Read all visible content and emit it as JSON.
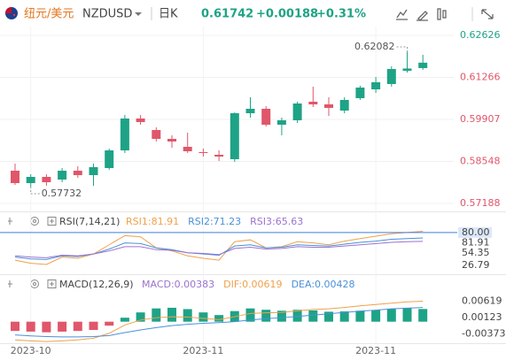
{
  "header": {
    "name": "纽元/美元",
    "symbol": "NZDUSD",
    "period": "日K",
    "price": "0.61742",
    "change": "+0.00188",
    "change_pct": "+0.31%"
  },
  "chart_data": [
    {
      "type": "candlestick",
      "up_color": "#1ea386",
      "down_color": "#e0566a",
      "grid": true,
      "categories": [
        null,
        "2023-10",
        null,
        null,
        null,
        null,
        null,
        null,
        null,
        null,
        null,
        null,
        "2023-11",
        null,
        null,
        null,
        null,
        null,
        null,
        null,
        null,
        null,
        null,
        "2023-11",
        null,
        null,
        null
      ],
      "candles": [
        {
          "open": 0.58247,
          "high": 0.58476,
          "low": 0.57789,
          "close": 0.57846
        },
        {
          "open": 0.57846,
          "high": 0.58133,
          "low": 0.57732,
          "close": 0.58047
        },
        {
          "open": 0.58047,
          "high": 0.58133,
          "low": 0.57761,
          "close": 0.57875
        },
        {
          "open": 0.57961,
          "high": 0.58333,
          "low": 0.57875,
          "close": 0.58247
        },
        {
          "open": 0.58247,
          "high": 0.5839,
          "low": 0.58018,
          "close": 0.58104
        },
        {
          "open": 0.58104,
          "high": 0.58476,
          "low": 0.57761,
          "close": 0.58362
        },
        {
          "open": 0.58333,
          "high": 0.58963,
          "low": 0.58276,
          "close": 0.58905
        },
        {
          "open": 0.58905,
          "high": 0.6005,
          "low": 0.5882,
          "close": 0.59936
        },
        {
          "open": 0.59936,
          "high": 0.6005,
          "low": 0.59735,
          "close": 0.59821
        },
        {
          "open": 0.59564,
          "high": 0.5965,
          "low": 0.59192,
          "close": 0.59277
        },
        {
          "open": 0.59277,
          "high": 0.59392,
          "low": 0.58991,
          "close": 0.59192
        },
        {
          "open": 0.5902,
          "high": 0.59478,
          "low": 0.5882,
          "close": 0.58877
        },
        {
          "open": 0.58848,
          "high": 0.58963,
          "low": 0.58705,
          "close": 0.5882
        },
        {
          "open": 0.58762,
          "high": 0.58905,
          "low": 0.58562,
          "close": 0.58705
        },
        {
          "open": 0.58619,
          "high": 0.60136,
          "low": 0.58533,
          "close": 0.60107
        },
        {
          "open": 0.60107,
          "high": 0.60623,
          "low": 0.59964,
          "close": 0.60251
        },
        {
          "open": 0.60251,
          "high": 0.60336,
          "low": 0.59678,
          "close": 0.59735
        },
        {
          "open": 0.59735,
          "high": 0.59964,
          "low": 0.59392,
          "close": 0.59879
        },
        {
          "open": 0.59879,
          "high": 0.6048,
          "low": 0.59793,
          "close": 0.60422
        },
        {
          "open": 0.6048,
          "high": 0.60966,
          "low": 0.60308,
          "close": 0.60394
        },
        {
          "open": 0.60394,
          "high": 0.60623,
          "low": 0.60022,
          "close": 0.60279
        },
        {
          "open": 0.60193,
          "high": 0.60623,
          "low": 0.60107,
          "close": 0.60537
        },
        {
          "open": 0.60594,
          "high": 0.60995,
          "low": 0.60537,
          "close": 0.60937
        },
        {
          "open": 0.6088,
          "high": 0.61281,
          "low": 0.60766,
          "close": 0.61109
        },
        {
          "open": 0.61052,
          "high": 0.61624,
          "low": 0.60966,
          "close": 0.61538
        },
        {
          "open": 0.61481,
          "high": 0.62082,
          "low": 0.61424,
          "close": 0.61554
        },
        {
          "open": 0.61568,
          "high": 0.61996,
          "low": 0.6151,
          "close": 0.61742
        }
      ],
      "ylim": [
        0.56959,
        0.62912
      ],
      "yticks": [
        0.62626,
        0.61266,
        0.59907,
        0.58548,
        0.57188
      ]
    },
    {
      "type": "line",
      "title": "RSI(7,14,21)",
      "ylim": [
        15,
        87
      ],
      "yticks": [
        {
          "value": 80,
          "label": "80.00"
        },
        54.35,
        26.79
      ],
      "reference_color": "#3d7fd9",
      "series": [
        {
          "name": "RSI1:81.91",
          "color": "#f0a04b",
          "values": [
            35,
            30,
            28,
            40,
            38,
            45,
            60,
            75,
            73,
            55,
            50,
            42,
            38,
            35,
            65,
            68,
            55,
            57,
            65,
            63,
            60,
            66,
            70,
            74,
            78,
            80,
            81.91
          ]
        },
        {
          "name": "RSI2:71.23",
          "color": "#4a90d9",
          "values": [
            40,
            37,
            36,
            42,
            41,
            45,
            53,
            63,
            62,
            55,
            52,
            47,
            45,
            43,
            58,
            60,
            55,
            56,
            60,
            59,
            58,
            61,
            64,
            66,
            69,
            70,
            71.23
          ]
        },
        {
          "name": "RSI3:65.63",
          "color": "#9b72cf",
          "values": [
            42,
            40,
            39,
            43,
            42,
            45,
            50,
            57,
            57,
            52,
            51,
            47,
            46,
            44,
            54,
            56,
            53,
            54,
            57,
            56,
            56,
            58,
            60,
            62,
            64,
            65,
            65.63
          ]
        }
      ]
    },
    {
      "type": "macd",
      "title": "MACD(12,26,9)",
      "ylim": [
        -0.0065,
        0.009
      ],
      "yticks": [
        0.00619,
        0.00123,
        -0.00373
      ],
      "positive_color": "#1ea386",
      "negative_color": "#e0566a",
      "series": [
        {
          "name": "MACD:0.00383",
          "color": "#9b72cf",
          "values": [
            -0.0028,
            -0.003,
            -0.0032,
            -0.003,
            -0.0028,
            -0.0025,
            -0.0012,
            0.0012,
            0.0028,
            0.004,
            0.0042,
            0.0038,
            0.0028,
            0.002,
            0.0032,
            0.004,
            0.0036,
            0.0033,
            0.0036,
            0.0034,
            0.003,
            0.0031,
            0.0033,
            0.0035,
            0.0038,
            0.0042,
            0.00383
          ]
        },
        {
          "name": "DIF:0.00619",
          "color": "#f0a04b",
          "values": [
            -0.0055,
            -0.0058,
            -0.006,
            -0.0058,
            -0.0055,
            -0.005,
            -0.0035,
            -0.001,
            0.0005,
            0.0012,
            0.0015,
            0.0014,
            0.001,
            0.0006,
            0.0015,
            0.0025,
            0.0027,
            0.0028,
            0.0033,
            0.0037,
            0.0039,
            0.0043,
            0.0048,
            0.0052,
            0.0056,
            0.006,
            0.00619
          ]
        },
        {
          "name": "DEA:0.00428",
          "color": "#4a90d9",
          "values": [
            -0.004,
            -0.0043,
            -0.0045,
            -0.0046,
            -0.0046,
            -0.0045,
            -0.0042,
            -0.0033,
            -0.0025,
            -0.0018,
            -0.0012,
            -0.0008,
            -0.0005,
            -0.0003,
            0,
            0.0005,
            0.0009,
            0.0012,
            0.0016,
            0.002,
            0.0024,
            0.0028,
            0.0032,
            0.0035,
            0.0039,
            0.0041,
            0.00428
          ]
        }
      ]
    }
  ]
}
